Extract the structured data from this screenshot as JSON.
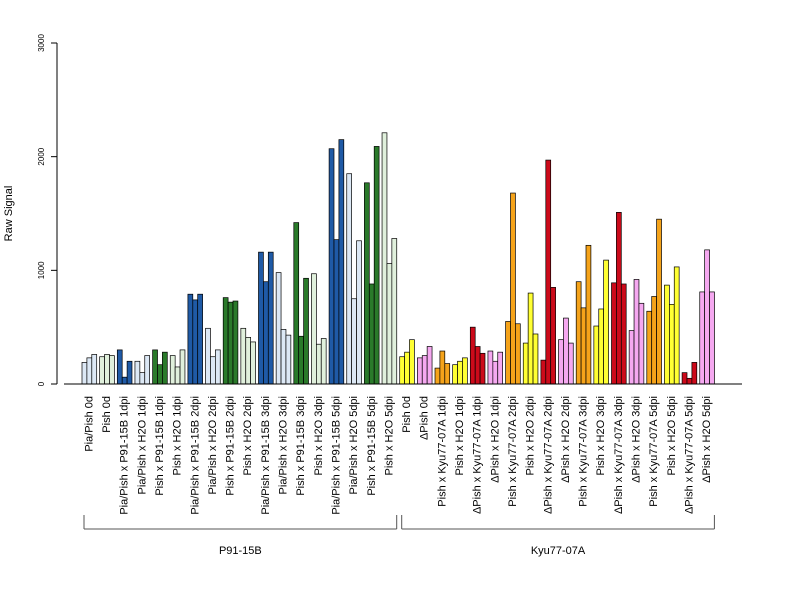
{
  "chart_data": {
    "type": "bar",
    "ylabel": "Raw Signal",
    "ylim": [
      0,
      3000
    ],
    "yticks": [
      0,
      1000,
      2000,
      3000
    ],
    "bars_per_category": 3,
    "categories": [
      {
        "label": "Pia/Pish 0d",
        "color": "#dce8f5",
        "values": [
          190,
          230,
          260
        ]
      },
      {
        "label": "Pish 0d",
        "color": "#e0f0dc",
        "values": [
          240,
          260,
          250
        ]
      },
      {
        "label": "Pia/Pish x P91-15B 1dpi",
        "color": "#1f5aa6",
        "values": [
          300,
          60,
          200
        ]
      },
      {
        "label": "Pia/Pish x H2O 1dpi",
        "color": "#dce8f5",
        "values": [
          200,
          100,
          250
        ]
      },
      {
        "label": "Pish x P91-15B 1dpi",
        "color": "#2a7a2a",
        "values": [
          300,
          170,
          280
        ]
      },
      {
        "label": "Pish x H2O 1dpi",
        "color": "#e0f0dc",
        "values": [
          250,
          150,
          300
        ]
      },
      {
        "label": "Pia/Pish x P91-15B 2dpi",
        "color": "#1f5aa6",
        "values": [
          790,
          740,
          790
        ]
      },
      {
        "label": "Pia/Pish x H2O 2dpi",
        "color": "#dce8f5",
        "values": [
          490,
          240,
          300
        ]
      },
      {
        "label": "Pish x P91-15B 2dpi",
        "color": "#2a7a2a",
        "values": [
          760,
          720,
          730
        ]
      },
      {
        "label": "Pish x H2O 2dpi",
        "color": "#e0f0dc",
        "values": [
          490,
          410,
          370
        ]
      },
      {
        "label": "Pia/Pish x P91-15B 3dpi",
        "color": "#1f5aa6",
        "values": [
          1160,
          900,
          1160
        ]
      },
      {
        "label": "Pia/Pish x H2O 3dpi",
        "color": "#dce8f5",
        "values": [
          980,
          480,
          430
        ]
      },
      {
        "label": "Pish x P91-15B 3dpi",
        "color": "#2a7a2a",
        "values": [
          1420,
          420,
          930
        ]
      },
      {
        "label": "Pish x H2O 3dpi",
        "color": "#e0f0dc",
        "values": [
          970,
          350,
          400
        ]
      },
      {
        "label": "Pia/Pish x P91-15B 5dpi",
        "color": "#1f5aa6",
        "values": [
          2070,
          1270,
          2150
        ]
      },
      {
        "label": "Pia/Pish x H2O 5dpi",
        "color": "#dce8f5",
        "values": [
          1850,
          750,
          1260
        ]
      },
      {
        "label": "Pish x P91-15B 5dpi",
        "color": "#2a7a2a",
        "values": [
          1770,
          880,
          2090
        ]
      },
      {
        "label": "Pish x H2O 5dpi",
        "color": "#e0f0dc",
        "values": [
          2210,
          1060,
          1280
        ]
      },
      {
        "label": "Pish 0d",
        "color": "#ffff33",
        "values": [
          240,
          280,
          390
        ]
      },
      {
        "label": "ΔPish 0d",
        "color": "#f5a8f0",
        "values": [
          230,
          250,
          330
        ]
      },
      {
        "label": "Pish x Kyu77-07A 1dpi",
        "color": "#f5a31a",
        "values": [
          140,
          290,
          180
        ]
      },
      {
        "label": "Pish x H2O 1dpi",
        "color": "#ffff33",
        "values": [
          170,
          200,
          230
        ]
      },
      {
        "label": "ΔPish x Kyu77-07A 1dpi",
        "color": "#cc0a1a",
        "values": [
          500,
          330,
          270
        ]
      },
      {
        "label": "ΔPish x H2O 1dpi",
        "color": "#f5a8f0",
        "values": [
          290,
          200,
          280
        ]
      },
      {
        "label": "Pish x Kyu77-07A 2dpi",
        "color": "#f5a31a",
        "values": [
          550,
          1680,
          530
        ]
      },
      {
        "label": "Pish x H2O 2dpi",
        "color": "#ffff33",
        "values": [
          360,
          800,
          440
        ]
      },
      {
        "label": "ΔPish x Kyu77-07A 2dpi",
        "color": "#cc0a1a",
        "values": [
          210,
          1970,
          850
        ]
      },
      {
        "label": "ΔPish x H2O 2dpi",
        "color": "#f5a8f0",
        "values": [
          390,
          580,
          360
        ]
      },
      {
        "label": "Pish x Kyu77-07A 3dpi",
        "color": "#f5a31a",
        "values": [
          900,
          670,
          1220
        ]
      },
      {
        "label": "Pish x H2O 3dpi",
        "color": "#ffff33",
        "values": [
          510,
          660,
          1090
        ]
      },
      {
        "label": "ΔPish x Kyu77-07A 3dpi",
        "color": "#cc0a1a",
        "values": [
          890,
          1510,
          880
        ]
      },
      {
        "label": "ΔPish x H2O 3dpi",
        "color": "#f5a8f0",
        "values": [
          470,
          920,
          710
        ]
      },
      {
        "label": "Pish x Kyu77-07A 5dpi",
        "color": "#f5a31a",
        "values": [
          640,
          770,
          1450
        ]
      },
      {
        "label": "Pish x H2O 5dpi",
        "color": "#ffff33",
        "values": [
          870,
          700,
          1030
        ]
      },
      {
        "label": "ΔPish x Kyu77-07A 5dpi",
        "color": "#cc0a1a",
        "values": [
          100,
          50,
          190
        ]
      },
      {
        "label": "ΔPish x H2O 5dpi",
        "color": "#f5a8f0",
        "values": [
          810,
          1180,
          810
        ]
      }
    ],
    "groups": [
      {
        "label": "P91-15B",
        "from": 0,
        "to": 17
      },
      {
        "label": "Kyu77-07A",
        "from": 18,
        "to": 35
      }
    ]
  }
}
